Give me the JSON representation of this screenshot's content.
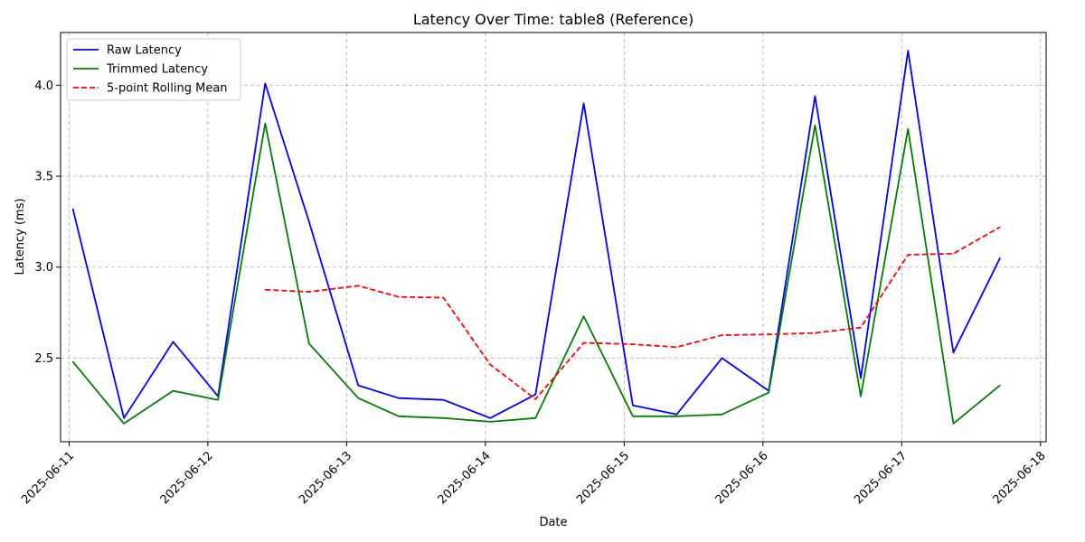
{
  "chart_data": {
    "type": "line",
    "title": "Latency Over Time: table8 (Reference)",
    "xlabel": "Date",
    "ylabel": "Latency (ms)",
    "x_ticks": [
      "2025-06-11",
      "2025-06-12",
      "2025-06-13",
      "2025-06-14",
      "2025-06-15",
      "2025-06-16",
      "2025-06-17",
      "2025-06-18"
    ],
    "y_ticks": [
      "2.5",
      "3.0",
      "3.5",
      "4.0"
    ],
    "xlim": [
      "2025-06-10 22:32",
      "2025-06-18 00:58"
    ],
    "ylim": [
      2.04,
      4.29
    ],
    "grid": true,
    "legend_position": "top-left",
    "x": [
      "2025-06-11 00:40",
      "2025-06-11 09:30",
      "2025-06-11 18:00",
      "2025-06-12 01:45",
      "2025-06-12 09:55",
      "2025-06-12 17:30",
      "2025-06-13 02:00",
      "2025-06-13 09:00",
      "2025-06-13 16:45",
      "2025-06-14 00:50",
      "2025-06-14 08:40",
      "2025-06-14 17:00",
      "2025-06-15 01:30",
      "2025-06-15 09:05",
      "2025-06-15 16:55",
      "2025-06-16 01:00",
      "2025-06-16 09:00",
      "2025-06-16 16:55",
      "2025-06-17 01:05",
      "2025-06-17 08:55",
      "2025-06-17 17:00"
    ],
    "series": [
      {
        "name": "Raw Latency",
        "color": "#0000ff",
        "style": "solid",
        "values": [
          3.32,
          2.17,
          2.59,
          2.29,
          4.01,
          3.25,
          2.35,
          2.28,
          2.27,
          2.17,
          2.3,
          3.9,
          2.24,
          2.19,
          2.5,
          2.32,
          3.94,
          2.39,
          4.19,
          2.53,
          3.05
        ]
      },
      {
        "name": "Trimmed Latency",
        "color": "#008000",
        "style": "solid",
        "values": [
          2.48,
          2.14,
          2.32,
          2.27,
          3.79,
          2.58,
          2.28,
          2.18,
          2.17,
          2.15,
          2.17,
          2.73,
          2.18,
          2.18,
          2.19,
          2.31,
          3.78,
          2.29,
          3.76,
          2.14,
          2.35
        ]
      },
      {
        "name": "5-point Rolling Mean",
        "color": "#ff0000",
        "style": "dashed",
        "values": [
          null,
          null,
          null,
          null,
          2.876,
          2.864,
          2.898,
          2.836,
          2.832,
          2.464,
          2.274,
          2.584,
          2.576,
          2.56,
          2.626,
          2.63,
          2.638,
          2.668,
          3.068,
          3.074,
          3.22
        ]
      }
    ]
  }
}
